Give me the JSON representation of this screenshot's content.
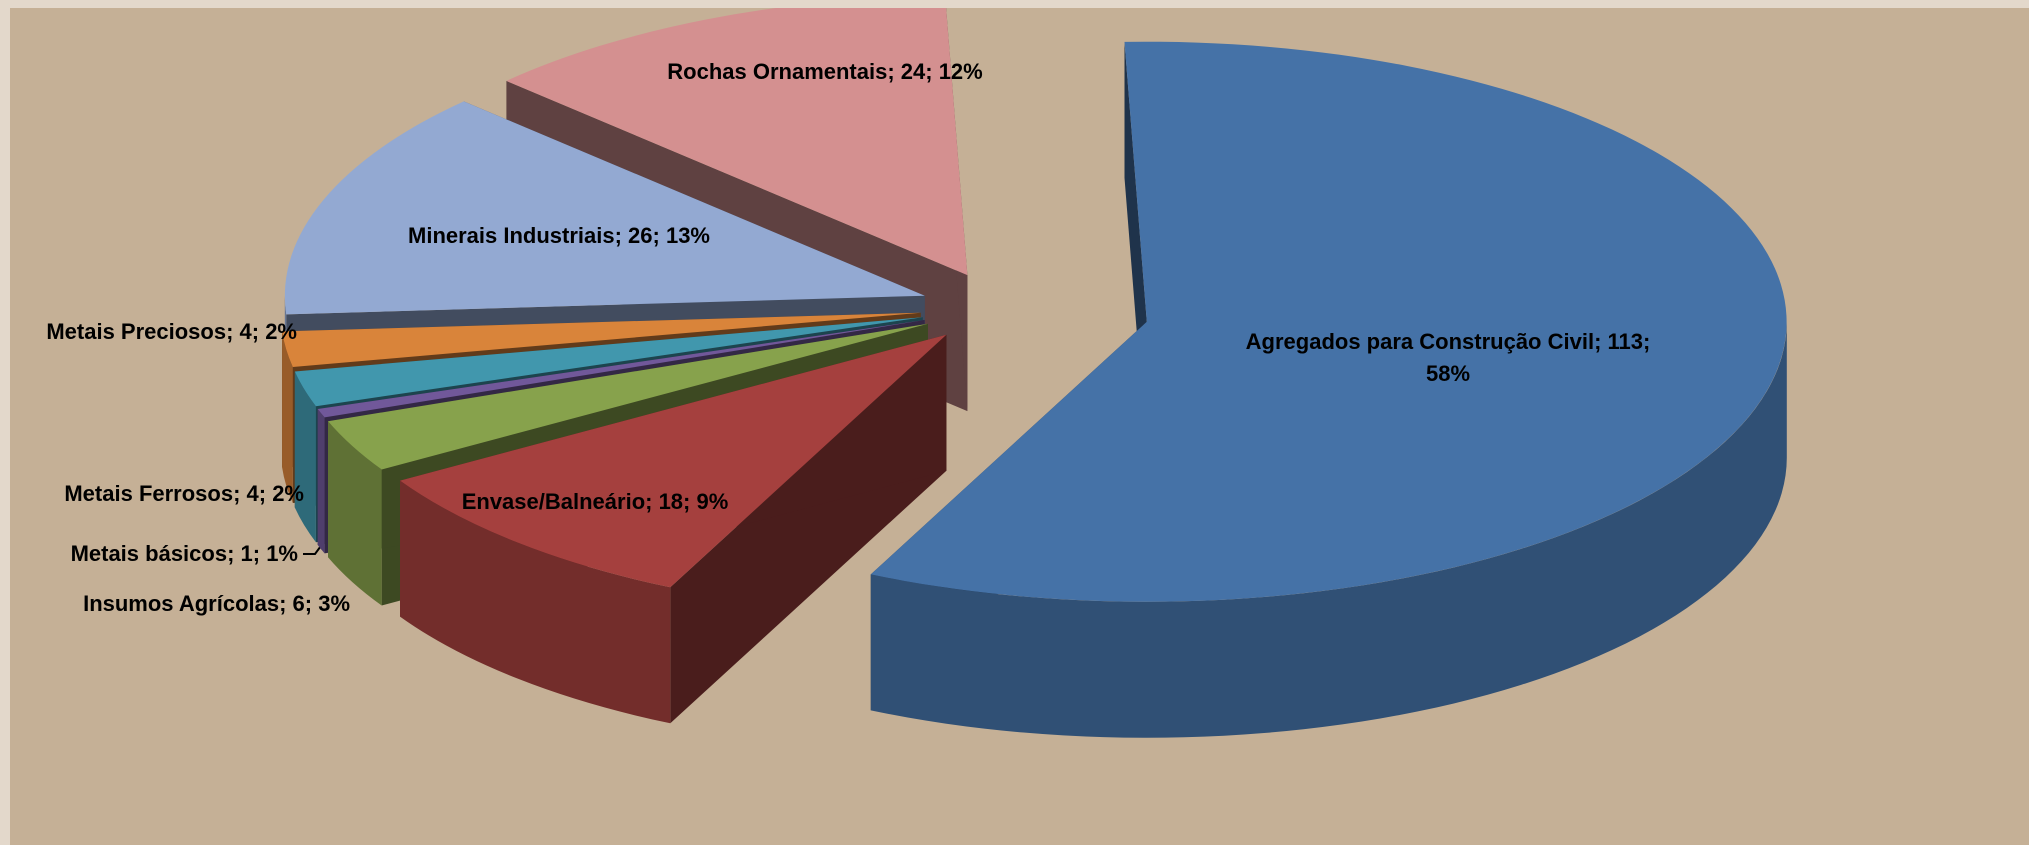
{
  "chart_data": {
    "type": "pie",
    "values": [
      113,
      18,
      6,
      1,
      4,
      4,
      26,
      24
    ],
    "value_labels": [
      "Agregados para Construção Civil; 113; 58%",
      "Envase/Balneário; 18; 9%",
      "Insumos Agrícolas; 6; 3%",
      "Metais básicos; 1; 1%",
      "Metais Ferrosos; 4; 2%",
      "Metais Preciosos; 4; 2%",
      "Minerais Industriais; 26; 13%",
      "Rochas Ornamentais; 24; 12%"
    ],
    "colors": [
      "#4572a7",
      "#a5403e",
      "#87a24c",
      "#71589a",
      "#4197ad",
      "#d9843a",
      "#93a9d2",
      "#d49090"
    ]
  }
}
